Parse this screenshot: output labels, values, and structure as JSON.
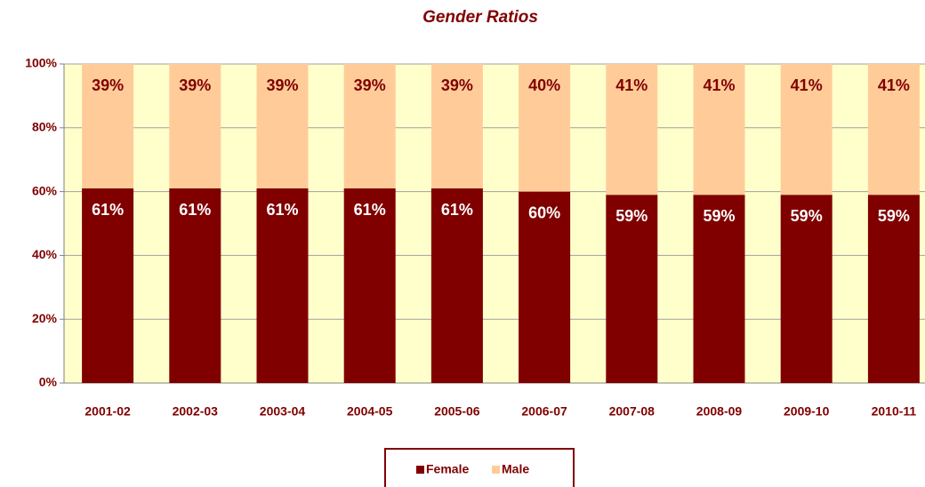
{
  "chart_data": {
    "type": "stacked_bar",
    "title": "Gender Ratios",
    "categories": [
      "2001-02",
      "2002-03",
      "2003-04",
      "2004-05",
      "2005-06",
      "2006-07",
      "2007-08",
      "2008-09",
      "2009-10",
      "2010-11"
    ],
    "series": [
      {
        "name": "Female",
        "color": "#800000",
        "values": [
          61,
          61,
          61,
          61,
          61,
          60,
          59,
          59,
          59,
          59
        ],
        "value_labels": [
          "61%",
          "61%",
          "61%",
          "61%",
          "61%",
          "60%",
          "59%",
          "59%",
          "59%",
          "59%"
        ]
      },
      {
        "name": "Male",
        "color": "#ffcc99",
        "values": [
          39,
          39,
          39,
          39,
          39,
          40,
          41,
          41,
          41,
          41
        ],
        "value_labels": [
          "39%",
          "39%",
          "39%",
          "39%",
          "39%",
          "40%",
          "41%",
          "41%",
          "41%",
          "41%"
        ]
      }
    ],
    "ylim": [
      0,
      100
    ],
    "yticks": [
      {
        "value": 0,
        "label": "0%"
      },
      {
        "value": 20,
        "label": "20%"
      },
      {
        "value": 40,
        "label": "40%"
      },
      {
        "value": 60,
        "label": "60%"
      },
      {
        "value": 80,
        "label": "80%"
      },
      {
        "value": 100,
        "label": "100%"
      }
    ],
    "grid": true,
    "legend": "bottom"
  }
}
